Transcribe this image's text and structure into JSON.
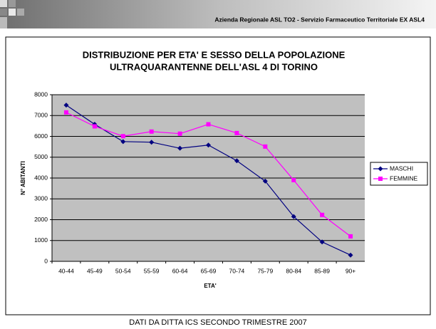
{
  "header": {
    "text": "Azienda Regionale ASL TO2 - Servizio Farmaceutico Territoriale EX ASL4"
  },
  "chart_data": {
    "type": "line",
    "title": [
      "DISTRIBUZIONE PER ETA' E SESSO DELLA POPOLAZIONE",
      "ULTRAQUARANTENNE  DELL'ASL 4 DI TORINO"
    ],
    "x_label": "ETA'",
    "y_label": "N° ABITANTI",
    "categories": [
      "40-44",
      "45-49",
      "50-54",
      "55-59",
      "60-64",
      "65-69",
      "70-74",
      "75-79",
      "80-84",
      "85-89",
      "90+"
    ],
    "series": [
      {
        "name": "MASCHI",
        "color": "#000080",
        "marker": "diamond",
        "values": [
          7500,
          6580,
          5750,
          5720,
          5430,
          5580,
          4830,
          3850,
          2150,
          930,
          300
        ]
      },
      {
        "name": "FEMMINE",
        "color": "#ff00ff",
        "marker": "square",
        "values": [
          7150,
          6480,
          6010,
          6230,
          6130,
          6580,
          6160,
          5510,
          3900,
          2230,
          1200
        ]
      }
    ],
    "ylim": [
      0,
      8000
    ],
    "yticks": [
      0,
      1000,
      2000,
      3000,
      4000,
      5000,
      6000,
      7000,
      8000
    ],
    "grid": true,
    "legend": "right",
    "plot_background": "#c0c0c0"
  },
  "footer": {
    "text": "DATI DA DITTA ICS SECONDO TRIMESTRE 2007"
  }
}
